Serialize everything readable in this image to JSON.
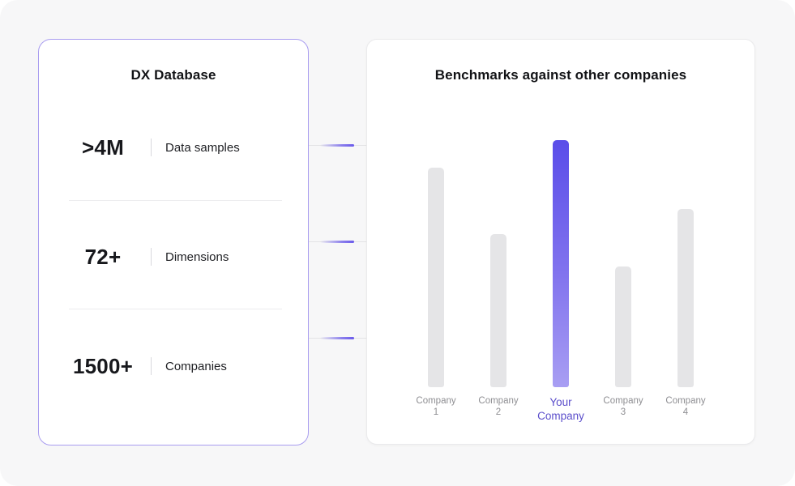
{
  "left_card": {
    "title": "DX Database",
    "stats": [
      {
        "value": ">4M",
        "label": "Data samples"
      },
      {
        "value": "72+",
        "label": "Dimensions"
      },
      {
        "value": "1500+",
        "label": "Companies"
      }
    ]
  },
  "right_card": {
    "title": "Benchmarks against other companies"
  },
  "connectors": {
    "count": 3,
    "pulse_color": "#6a5aeb",
    "line_color": "#e3e3e6"
  },
  "chart_data": {
    "type": "bar",
    "title": "Benchmarks against other companies",
    "categories": [
      "Company 1",
      "Company 2",
      "Your Company",
      "Company 3",
      "Company 4"
    ],
    "values": [
      89,
      62,
      100,
      49,
      72
    ],
    "ylim": [
      0,
      100
    ],
    "value_note": "relative bar heights, percent of tallest bar; no axis or value labels shown",
    "highlighted_category": "Your Company",
    "highlight_index": 2,
    "grid": false,
    "legend": false,
    "xlabel": "",
    "ylabel": "",
    "bar_labels": [
      {
        "line1": "Company",
        "line2": "1"
      },
      {
        "line1": "Company",
        "line2": "2"
      },
      {
        "line1": "Your",
        "line2": "Company"
      },
      {
        "line1": "Company",
        "line2": "3"
      },
      {
        "line1": "Company",
        "line2": "4"
      }
    ],
    "colors": {
      "default_bar": "#e5e5e7",
      "highlight_gradient_top": "#5a4de9",
      "highlight_gradient_bottom": "#a89ef3",
      "highlight_label": "#5b4ecb",
      "label_gray": "#8e8e92"
    }
  },
  "colors": {
    "page_background": "#f7f7f8",
    "card_background": "#ffffff",
    "left_card_border": "#a99df0",
    "right_card_border": "#eaeaec",
    "accent_purple": "#5a4de9"
  }
}
